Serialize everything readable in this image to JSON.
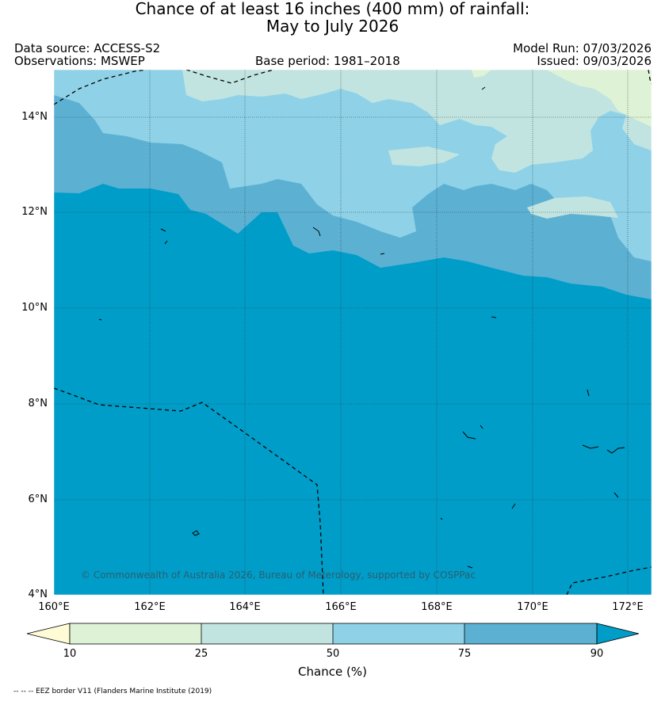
{
  "title_line1": "Chance of at least 16 inches (400  mm) of rainfall:",
  "title_line2": "May to July 2026",
  "data_source": "Data source: ACCESS-S2",
  "observations": "Observations: MSWEP",
  "base_period": "Base period: 1981–2018",
  "model_run": "Model Run: 07/03/2026",
  "issued": "Issued: 09/03/2026",
  "copyright": "© Commonwealth of Australia 2026, Bureau of Meterology, supported by COSPPac",
  "lat_labels": [
    "14°N",
    "12°N",
    "10°N",
    "8°N",
    "6°N",
    "4°N"
  ],
  "lon_labels": [
    "160°E",
    "162°E",
    "164°E",
    "166°E",
    "168°E",
    "170°E",
    "172°E"
  ],
  "colorbar": {
    "title": "Chance (%)",
    "ticks": [
      "10",
      "25",
      "50",
      "75",
      "90"
    ],
    "colors": [
      "#fffbd5",
      "#def3d6",
      "#c2e4e1",
      "#8fd2e8",
      "#5cb1d3",
      "#009dc9"
    ]
  },
  "legend_eez": "-- -- -- EEZ border V11 (Flanders Marine Institute (2019)"
}
